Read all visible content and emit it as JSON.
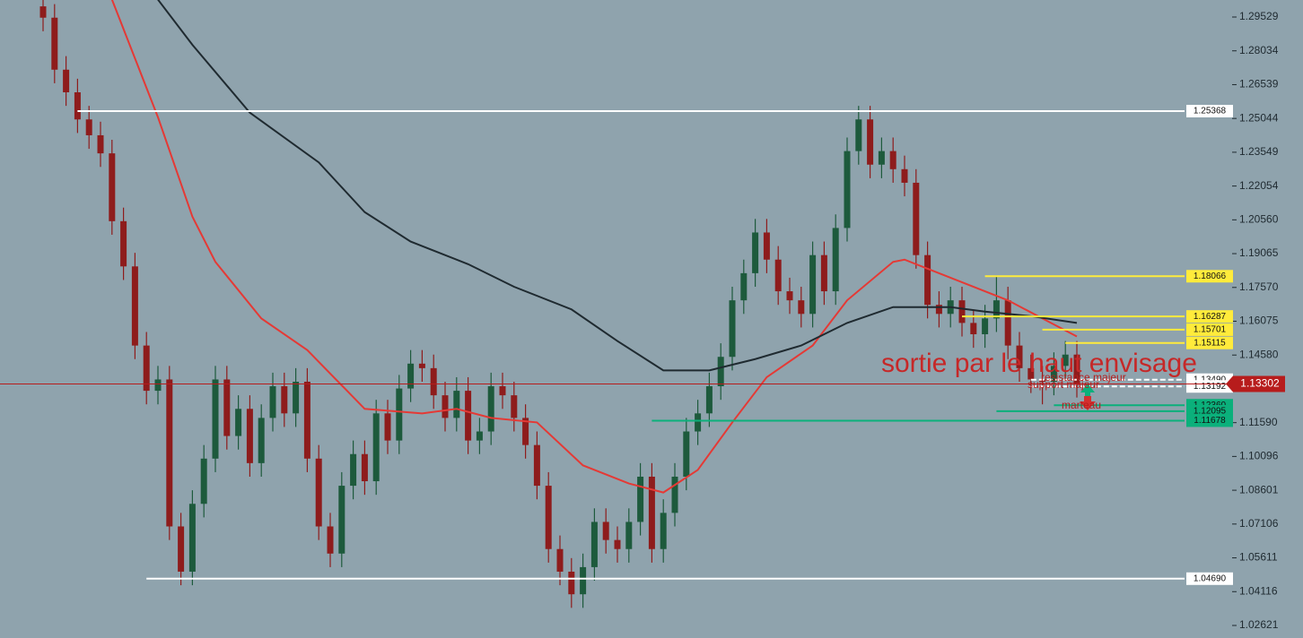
{
  "chart_data": {
    "type": "candlestick",
    "ylim": [
      1.02066,
      1.30282
    ],
    "yticks": [
      {
        "value": 1.29529,
        "label": "1.29529"
      },
      {
        "value": 1.28034,
        "label": "1.28034"
      },
      {
        "value": 1.26539,
        "label": "1.26539"
      },
      {
        "value": 1.25044,
        "label": "1.25044"
      },
      {
        "value": 1.23549,
        "label": "1.23549"
      },
      {
        "value": 1.22054,
        "label": "1.22054"
      },
      {
        "value": 1.2056,
        "label": "1.20560"
      },
      {
        "value": 1.19065,
        "label": "1.19065"
      },
      {
        "value": 1.1757,
        "label": "1.17570"
      },
      {
        "value": 1.16075,
        "label": "1.16075"
      },
      {
        "value": 1.1458,
        "label": "1.14580"
      },
      {
        "value": 1.1159,
        "label": "1.11590"
      },
      {
        "value": 1.10096,
        "label": "1.10096"
      },
      {
        "value": 1.08601,
        "label": "1.08601"
      },
      {
        "value": 1.07106,
        "label": "1.07106"
      },
      {
        "value": 1.05611,
        "label": "1.05611"
      },
      {
        "value": 1.04116,
        "label": "1.04116"
      },
      {
        "value": 1.02621,
        "label": "1.02621"
      }
    ],
    "up_color": "#1d5a3c",
    "down_color": "#8e1c1c",
    "candles": [
      [
        1.3,
        1.306,
        1.289,
        1.295
      ],
      [
        1.295,
        1.301,
        1.266,
        1.272
      ],
      [
        1.272,
        1.278,
        1.256,
        1.262
      ],
      [
        1.262,
        1.268,
        1.244,
        1.25
      ],
      [
        1.25,
        1.256,
        1.237,
        1.243
      ],
      [
        1.243,
        1.249,
        1.229,
        1.235
      ],
      [
        1.235,
        1.241,
        1.199,
        1.205
      ],
      [
        1.205,
        1.211,
        1.179,
        1.185
      ],
      [
        1.185,
        1.191,
        1.144,
        1.15
      ],
      [
        1.15,
        1.156,
        1.124,
        1.13
      ],
      [
        1.13,
        1.141,
        1.124,
        1.135
      ],
      [
        1.135,
        1.141,
        1.064,
        1.07
      ],
      [
        1.07,
        1.076,
        1.044,
        1.05
      ],
      [
        1.05,
        1.086,
        1.044,
        1.08
      ],
      [
        1.08,
        1.106,
        1.074,
        1.1
      ],
      [
        1.1,
        1.141,
        1.094,
        1.135
      ],
      [
        1.135,
        1.141,
        1.104,
        1.11
      ],
      [
        1.11,
        1.128,
        1.104,
        1.122
      ],
      [
        1.122,
        1.128,
        1.092,
        1.098
      ],
      [
        1.098,
        1.124,
        1.092,
        1.118
      ],
      [
        1.118,
        1.138,
        1.112,
        1.132
      ],
      [
        1.132,
        1.138,
        1.114,
        1.12
      ],
      [
        1.12,
        1.14,
        1.114,
        1.134
      ],
      [
        1.134,
        1.14,
        1.094,
        1.1
      ],
      [
        1.1,
        1.106,
        1.064,
        1.07
      ],
      [
        1.07,
        1.076,
        1.052,
        1.058
      ],
      [
        1.058,
        1.094,
        1.052,
        1.088
      ],
      [
        1.088,
        1.108,
        1.082,
        1.102
      ],
      [
        1.102,
        1.108,
        1.084,
        1.09
      ],
      [
        1.09,
        1.126,
        1.084,
        1.12
      ],
      [
        1.12,
        1.126,
        1.102,
        1.108
      ],
      [
        1.108,
        1.137,
        1.102,
        1.131
      ],
      [
        1.131,
        1.148,
        1.125,
        1.142
      ],
      [
        1.142,
        1.148,
        1.134,
        1.14
      ],
      [
        1.14,
        1.146,
        1.122,
        1.128
      ],
      [
        1.128,
        1.134,
        1.112,
        1.118
      ],
      [
        1.118,
        1.136,
        1.112,
        1.13
      ],
      [
        1.13,
        1.136,
        1.102,
        1.108
      ],
      [
        1.108,
        1.118,
        1.102,
        1.112
      ],
      [
        1.112,
        1.138,
        1.106,
        1.132
      ],
      [
        1.132,
        1.138,
        1.122,
        1.128
      ],
      [
        1.128,
        1.134,
        1.112,
        1.118
      ],
      [
        1.118,
        1.124,
        1.1,
        1.106
      ],
      [
        1.106,
        1.112,
        1.082,
        1.088
      ],
      [
        1.088,
        1.094,
        1.054,
        1.06
      ],
      [
        1.06,
        1.066,
        1.044,
        1.05
      ],
      [
        1.05,
        1.056,
        1.034,
        1.04
      ],
      [
        1.04,
        1.058,
        1.034,
        1.052
      ],
      [
        1.052,
        1.078,
        1.046,
        1.072
      ],
      [
        1.072,
        1.078,
        1.058,
        1.064
      ],
      [
        1.064,
        1.07,
        1.054,
        1.06
      ],
      [
        1.06,
        1.078,
        1.054,
        1.072
      ],
      [
        1.072,
        1.098,
        1.066,
        1.092
      ],
      [
        1.092,
        1.098,
        1.054,
        1.06
      ],
      [
        1.06,
        1.082,
        1.054,
        1.076
      ],
      [
        1.076,
        1.098,
        1.07,
        1.092
      ],
      [
        1.092,
        1.118,
        1.086,
        1.112
      ],
      [
        1.112,
        1.126,
        1.106,
        1.12
      ],
      [
        1.12,
        1.138,
        1.114,
        1.132
      ],
      [
        1.132,
        1.151,
        1.126,
        1.145
      ],
      [
        1.145,
        1.176,
        1.139,
        1.17
      ],
      [
        1.17,
        1.188,
        1.164,
        1.182
      ],
      [
        1.182,
        1.206,
        1.176,
        1.2
      ],
      [
        1.2,
        1.206,
        1.182,
        1.188
      ],
      [
        1.188,
        1.194,
        1.168,
        1.174
      ],
      [
        1.174,
        1.18,
        1.164,
        1.17
      ],
      [
        1.17,
        1.176,
        1.158,
        1.164
      ],
      [
        1.164,
        1.196,
        1.158,
        1.19
      ],
      [
        1.19,
        1.196,
        1.168,
        1.174
      ],
      [
        1.174,
        1.208,
        1.168,
        1.202
      ],
      [
        1.202,
        1.242,
        1.196,
        1.236
      ],
      [
        1.236,
        1.256,
        1.23,
        1.25
      ],
      [
        1.25,
        1.256,
        1.224,
        1.23
      ],
      [
        1.23,
        1.242,
        1.224,
        1.236
      ],
      [
        1.236,
        1.242,
        1.222,
        1.228
      ],
      [
        1.228,
        1.234,
        1.216,
        1.222
      ],
      [
        1.222,
        1.228,
        1.184,
        1.19
      ],
      [
        1.19,
        1.196,
        1.162,
        1.168
      ],
      [
        1.168,
        1.174,
        1.158,
        1.164
      ],
      [
        1.164,
        1.176,
        1.158,
        1.17
      ],
      [
        1.17,
        1.176,
        1.154,
        1.16
      ],
      [
        1.16,
        1.166,
        1.149,
        1.155
      ],
      [
        1.155,
        1.168,
        1.149,
        1.162
      ],
      [
        1.162,
        1.181,
        1.156,
        1.17
      ],
      [
        1.17,
        1.176,
        1.144,
        1.15
      ],
      [
        1.15,
        1.156,
        1.134,
        1.14
      ],
      [
        1.14,
        1.146,
        1.129,
        1.135
      ],
      [
        1.135,
        1.141,
        1.124,
        1.134
      ],
      [
        1.134,
        1.147,
        1.128,
        1.141
      ],
      [
        1.141,
        1.152,
        1.135,
        1.146
      ],
      [
        1.146,
        1.152,
        1.127,
        1.133
      ]
    ],
    "lines": [
      {
        "color": "#e53935",
        "x": [
          6,
          10,
          13,
          15,
          19,
          23,
          28,
          33,
          36,
          39,
          43,
          47,
          51,
          54,
          57,
          60,
          63,
          67,
          70,
          74,
          75,
          79,
          84,
          87,
          90
        ],
        "values": [
          1.303,
          1.251,
          1.207,
          1.187,
          1.162,
          1.148,
          1.122,
          1.12,
          1.122,
          1.118,
          1.116,
          1.097,
          1.089,
          1.085,
          1.095,
          1.116,
          1.136,
          1.15,
          1.17,
          1.187,
          1.188,
          1.18,
          1.17,
          1.162,
          1.154
        ]
      },
      {
        "color": "#1f2a30",
        "x": [
          10,
          13,
          18,
          24,
          28,
          32,
          37,
          41,
          46,
          50,
          54,
          58,
          62,
          66,
          70,
          74,
          79,
          82,
          86,
          90
        ],
        "values": [
          1.303,
          1.283,
          1.253,
          1.231,
          1.209,
          1.196,
          1.186,
          1.176,
          1.166,
          1.152,
          1.139,
          1.139,
          1.144,
          1.15,
          1.16,
          1.167,
          1.167,
          1.165,
          1.163,
          1.16
        ]
      }
    ],
    "levels": [
      {
        "value": 1.25368,
        "label": "1.25368",
        "color": "#ffffff",
        "start": 3
      },
      {
        "value": 1.0469,
        "label": "1.04690",
        "color": "#ffffff",
        "start": 9
      },
      {
        "value": 1.18066,
        "label": "1.18066",
        "color": "#ffeb3b",
        "start": 82
      },
      {
        "value": 1.16287,
        "label": "1.16287",
        "color": "#ffeb3b",
        "start": 80
      },
      {
        "value": 1.15701,
        "label": "1.15701",
        "color": "#ffeb3b",
        "start": 87
      },
      {
        "value": 1.15115,
        "label": "1.15115",
        "color": "#ffeb3b",
        "start": 89
      },
      {
        "value": 1.1349,
        "label": "1.13490",
        "color": "#ffffff",
        "start": 86
      },
      {
        "value": 1.13192,
        "label": "1.13192",
        "color": "#ffffff",
        "start": 86
      },
      {
        "value": 1.1236,
        "label": "1.12360",
        "color": "#0bb07b",
        "start": 88
      },
      {
        "value": 1.12095,
        "label": "1.12095",
        "color": "#0bb07b",
        "start": 83
      },
      {
        "value": 1.11678,
        "label": "1.11678",
        "color": "#0bb07b",
        "start": 53
      }
    ],
    "last_price": {
      "value": 1.13302,
      "label": "1.13302",
      "color": "#b71c1c"
    },
    "annotation": "sortie par le haut envisage",
    "notes": [
      "resistance majeur",
      "support majeur",
      "marteau"
    ]
  }
}
